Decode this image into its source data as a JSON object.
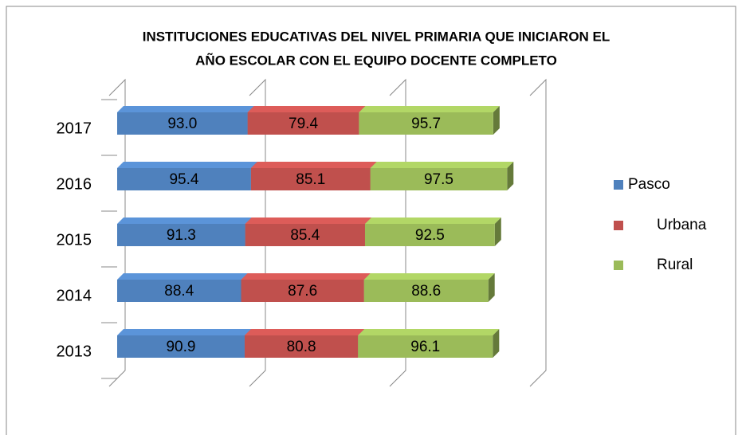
{
  "chart_data": {
    "type": "bar",
    "orientation": "horizontal",
    "stacked": true,
    "title": [
      "INSTITUCIONES EDUCATIVAS DEL NIVEL PRIMARIA QUE INICIARON EL",
      "AÑO ESCOLAR CON EL EQUIPO DOCENTE COMPLETO"
    ],
    "categories": [
      "2013",
      "2014",
      "2015",
      "2016",
      "2017"
    ],
    "series": [
      {
        "name": "Pasco",
        "color": "#4f81bd",
        "values": [
          90.9,
          88.4,
          91.3,
          95.4,
          93.0
        ],
        "value_labels": [
          "90.9",
          "88.4",
          "91.3",
          "95.4",
          "93.0"
        ]
      },
      {
        "name": "Urbana",
        "color": "#c0504d",
        "values": [
          80.8,
          87.6,
          85.4,
          85.1,
          79.4
        ],
        "value_labels": [
          "80.8",
          "87.6",
          "85.4",
          "85.1",
          "79.4"
        ]
      },
      {
        "name": "Rural",
        "color": "#9bbb59",
        "values": [
          96.1,
          88.6,
          92.5,
          97.5,
          95.7
        ],
        "value_labels": [
          "96.1",
          "88.6",
          "92.5",
          "97.5",
          "95.7"
        ]
      }
    ],
    "xlim": [
      0,
      300
    ],
    "xticks": [
      0,
      100,
      200,
      300
    ],
    "grid": true,
    "legend": "right",
    "three_d": true
  }
}
